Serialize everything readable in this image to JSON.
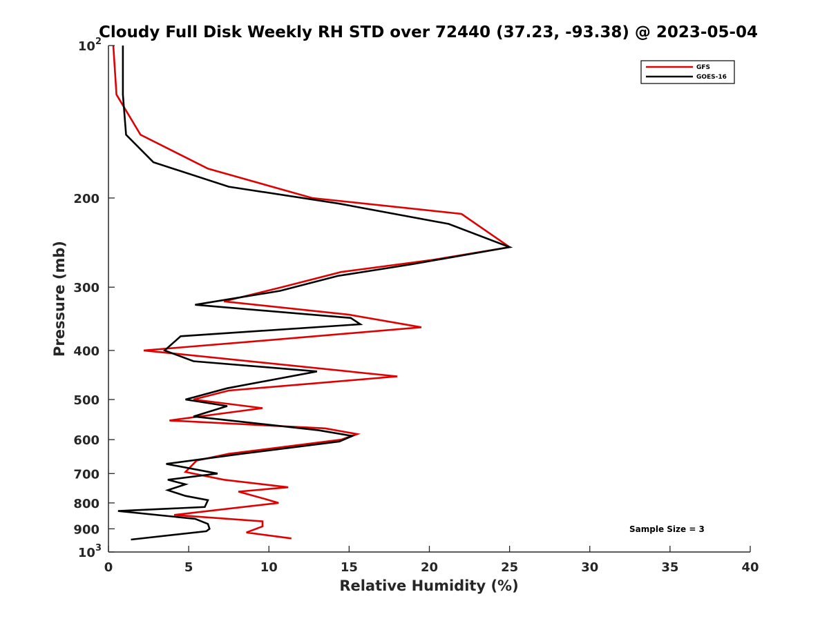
{
  "chart_data": {
    "type": "line",
    "title": "Cloudy Full Disk Weekly RH STD over 72440 (37.23, -93.38) @ 2023-05-04",
    "xlabel": "Relative Humidity (%)",
    "ylabel": "Pressure (mb)",
    "xlim": [
      0,
      40
    ],
    "ylim": [
      100,
      1000
    ],
    "y_scale": "log",
    "y_reversed": true,
    "grid": false,
    "legend_position": "top-right",
    "x_ticks": [
      "0",
      "5",
      "10",
      "15",
      "20",
      "25",
      "30",
      "35",
      "40"
    ],
    "y_ticks": [
      {
        "value": 100,
        "base": "10",
        "exp": "2"
      },
      {
        "value": 200,
        "label": "200"
      },
      {
        "value": 300,
        "label": "300"
      },
      {
        "value": 400,
        "label": "400"
      },
      {
        "value": 500,
        "label": "500"
      },
      {
        "value": 600,
        "label": "600"
      },
      {
        "value": 700,
        "label": "700"
      },
      {
        "value": 800,
        "label": "800"
      },
      {
        "value": 900,
        "label": "900"
      },
      {
        "value": 1000,
        "base": "10",
        "exp": "3"
      }
    ],
    "annotation": "Sample Size = 3",
    "series": [
      {
        "name": "GFS",
        "color": "#e00000",
        "points": [
          [
            0.3,
            100
          ],
          [
            0.5,
            125
          ],
          [
            2.0,
            150
          ],
          [
            6.2,
            175
          ],
          [
            12.7,
            200
          ],
          [
            22.0,
            215
          ],
          [
            25.0,
            250
          ],
          [
            20.2,
            265
          ],
          [
            14.5,
            280
          ],
          [
            10.8,
            300
          ],
          [
            7.2,
            320
          ],
          [
            15.0,
            340
          ],
          [
            19.5,
            360
          ],
          [
            8.6,
            385
          ],
          [
            2.2,
            400
          ],
          [
            18.0,
            450
          ],
          [
            7.5,
            480
          ],
          [
            5.3,
            500
          ],
          [
            9.6,
            520
          ],
          [
            3.8,
            550
          ],
          [
            13.5,
            570
          ],
          [
            15.5,
            585
          ],
          [
            14.5,
            600
          ],
          [
            7.5,
            640
          ],
          [
            5.5,
            660
          ],
          [
            4.8,
            695
          ],
          [
            7.2,
            720
          ],
          [
            11.2,
            745
          ],
          [
            8.1,
            760
          ],
          [
            9.7,
            785
          ],
          [
            10.6,
            800
          ],
          [
            4.1,
            845
          ],
          [
            9.6,
            870
          ],
          [
            9.6,
            890
          ],
          [
            8.6,
            915
          ],
          [
            11.4,
            940
          ]
        ]
      },
      {
        "name": "GOES-16",
        "color": "#000000",
        "points": [
          [
            0.9,
            100
          ],
          [
            0.9,
            125
          ],
          [
            1.1,
            150
          ],
          [
            2.8,
            170
          ],
          [
            7.5,
            190
          ],
          [
            14.3,
            205
          ],
          [
            21.2,
            225
          ],
          [
            25.0,
            250
          ],
          [
            19.0,
            270
          ],
          [
            14.3,
            285
          ],
          [
            10.7,
            305
          ],
          [
            5.4,
            325
          ],
          [
            15.1,
            345
          ],
          [
            15.7,
            355
          ],
          [
            4.5,
            375
          ],
          [
            3.5,
            400
          ],
          [
            5.3,
            420
          ],
          [
            13.0,
            440
          ],
          [
            7.4,
            475
          ],
          [
            4.8,
            500
          ],
          [
            7.4,
            515
          ],
          [
            5.3,
            540
          ],
          [
            13.1,
            575
          ],
          [
            15.2,
            590
          ],
          [
            14.4,
            605
          ],
          [
            8.3,
            640
          ],
          [
            3.6,
            670
          ],
          [
            6.8,
            700
          ],
          [
            3.7,
            720
          ],
          [
            4.8,
            735
          ],
          [
            3.7,
            755
          ],
          [
            4.8,
            775
          ],
          [
            6.2,
            790
          ],
          [
            6.0,
            815
          ],
          [
            0.6,
            830
          ],
          [
            5.4,
            860
          ],
          [
            6.2,
            880
          ],
          [
            6.3,
            900
          ],
          [
            6.1,
            910
          ],
          [
            1.4,
            945
          ]
        ]
      }
    ]
  }
}
